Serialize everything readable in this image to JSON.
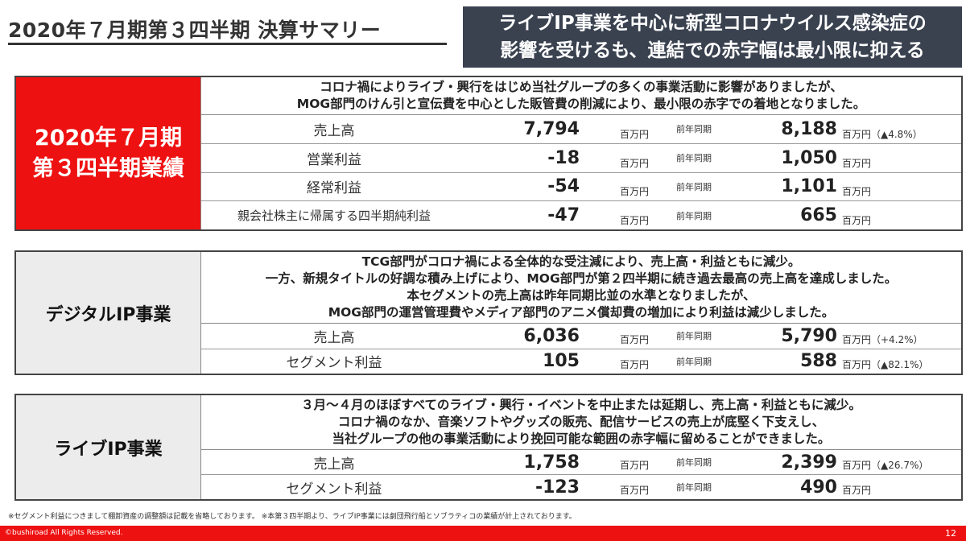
{
  "title": "2020年７月期第３四半期 決算サマリー",
  "headline": {
    "line1": "ライブIP事業を中心に新型コロナウイルス感染症の",
    "line2": "影響を受けるも、連結での赤字幅は最小限に抑える"
  },
  "sections": [
    {
      "label_lines": [
        "2020年７月期",
        "第３四半期業績"
      ],
      "desc": [
        "コロナ禍によりライブ・興行をはじめ当社グループの多くの事業活動に影響がありましたが、",
        "MOG部門のけん引と宣伝費を中心とした販管費の削減により、最小限の赤字での着地となりました。"
      ],
      "rows": [
        {
          "label": "売上高",
          "value": "7,794",
          "unit": "百万円",
          "prev_label": "前年同期",
          "prev_value": "8,188",
          "prev_unit": "百万円（▲4.8%）"
        },
        {
          "label": "営業利益",
          "value": "-18",
          "unit": "百万円",
          "prev_label": "前年同期",
          "prev_value": "1,050",
          "prev_unit": "百万円"
        },
        {
          "label": "経常利益",
          "value": "-54",
          "unit": "百万円",
          "prev_label": "前年同期",
          "prev_value": "1,101",
          "prev_unit": "百万円"
        },
        {
          "label": "親会社株主に帰属する四半期純利益",
          "value": "-47",
          "unit": "百万円",
          "prev_label": "前年同期",
          "prev_value": "665",
          "prev_unit": "百万円"
        }
      ]
    },
    {
      "label_lines": [
        "デジタルIP事業"
      ],
      "desc": [
        "TCG部門がコロナ禍による全体的な受注減により、売上高・利益ともに減少。",
        "一方、新規タイトルの好調な積み上げにより、MOG部門が第２四半期に続き過去最高の売上高を達成しました。",
        "本セグメントの売上高は昨年同期比並の水準となりましたが、",
        "MOG部門の運営管理費やメディア部門のアニメ償却費の増加により利益は減少しました。"
      ],
      "rows": [
        {
          "label": "売上高",
          "value": "6,036",
          "unit": "百万円",
          "prev_label": "前年同期",
          "prev_value": "5,790",
          "prev_unit": "百万円（+4.2%）"
        },
        {
          "label": "セグメント利益",
          "value": "105",
          "unit": "百万円",
          "prev_label": "前年同期",
          "prev_value": "588",
          "prev_unit": "百万円（▲82.1%）"
        }
      ]
    },
    {
      "label_lines": [
        "ライブIP事業"
      ],
      "desc": [
        "３月～４月のほぼすべてのライブ・興行・イベントを中止または延期し、売上高・利益ともに減少。",
        "コロナ禍のなか、音楽ソフトやグッズの販売、配信サービスの売上が底堅く下支えし、",
        "当社グループの他の事業活動により挽回可能な範囲の赤字幅に留めることができました。"
      ],
      "rows": [
        {
          "label": "売上高",
          "value": "1,758",
          "unit": "百万円",
          "prev_label": "前年同期",
          "prev_value": "2,399",
          "prev_unit": "百万円（▲26.7%）"
        },
        {
          "label": "セグメント利益",
          "value": "-123",
          "unit": "百万円",
          "prev_label": "前年同期",
          "prev_value": "490",
          "prev_unit": "百万円"
        }
      ]
    }
  ],
  "footnote": "※セグメント利益につきまして棚卸資産の調整額は記載を省略しております。 ※本第３四半期より、ライブIP事業には劇団飛行船とソブラティコの業績が計上されております。",
  "footer": {
    "copyright": "©bushiroad All Rights Reserved.",
    "page": "12"
  },
  "colors": {
    "accent_red": "#ee1111",
    "headline_bg": "#3a4250",
    "label_grey": "#ececec"
  }
}
